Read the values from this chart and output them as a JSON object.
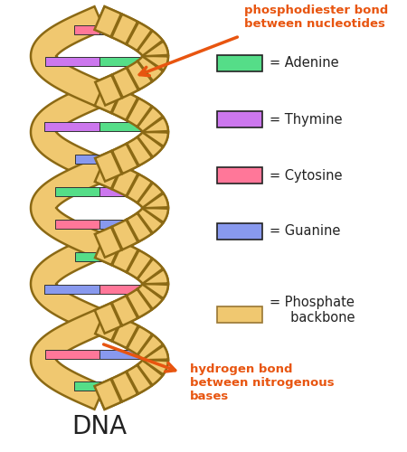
{
  "title": "DNA",
  "title_fontsize": 20,
  "bg_color": "#ffffff",
  "label_color": "#222222",
  "orange_color": "#e85510",
  "legend_items": [
    {
      "label": "= Adenine",
      "color": "#55dd88",
      "edge": "#222222"
    },
    {
      "label": "= Thymine",
      "color": "#cc77ee",
      "edge": "#222222"
    },
    {
      "label": "= Cytosine",
      "color": "#ff7799",
      "edge": "#222222"
    },
    {
      "label": "= Guanine",
      "color": "#8899ee",
      "edge": "#222222"
    },
    {
      "label": "= Phosphate\n     backbone",
      "color": "#f0c870",
      "edge": "#997733"
    }
  ],
  "backbone_color": "#f0c870",
  "backbone_edge": "#8B6914",
  "backbone_shadow": "#9B7A20",
  "base_pairs": [
    [
      "#cc77ee",
      "#55dd88"
    ],
    [
      "#8899ee",
      "#ff7799"
    ],
    [
      "#cc77ee",
      "#55dd88"
    ],
    [
      "#8899ee",
      "#ff7799"
    ],
    [
      "#55dd88",
      "#cc77ee"
    ],
    [
      "#8899ee",
      "#ff7799"
    ],
    [
      "#cc77ee",
      "#55dd88"
    ],
    [
      "#8899ee",
      "#ff7799"
    ],
    [
      "#cc77ee",
      "#55dd88"
    ],
    [
      "#8899ee",
      "#ff7799"
    ],
    [
      "#55dd88",
      "#cc77ee"
    ],
    [
      "#8899ee",
      "#ff7799"
    ]
  ],
  "annot1_text": "phosphodiester bond\nbetween nucleotides",
  "annot2_text": "hydrogen bond\nbetween nitrogenous\nbases"
}
